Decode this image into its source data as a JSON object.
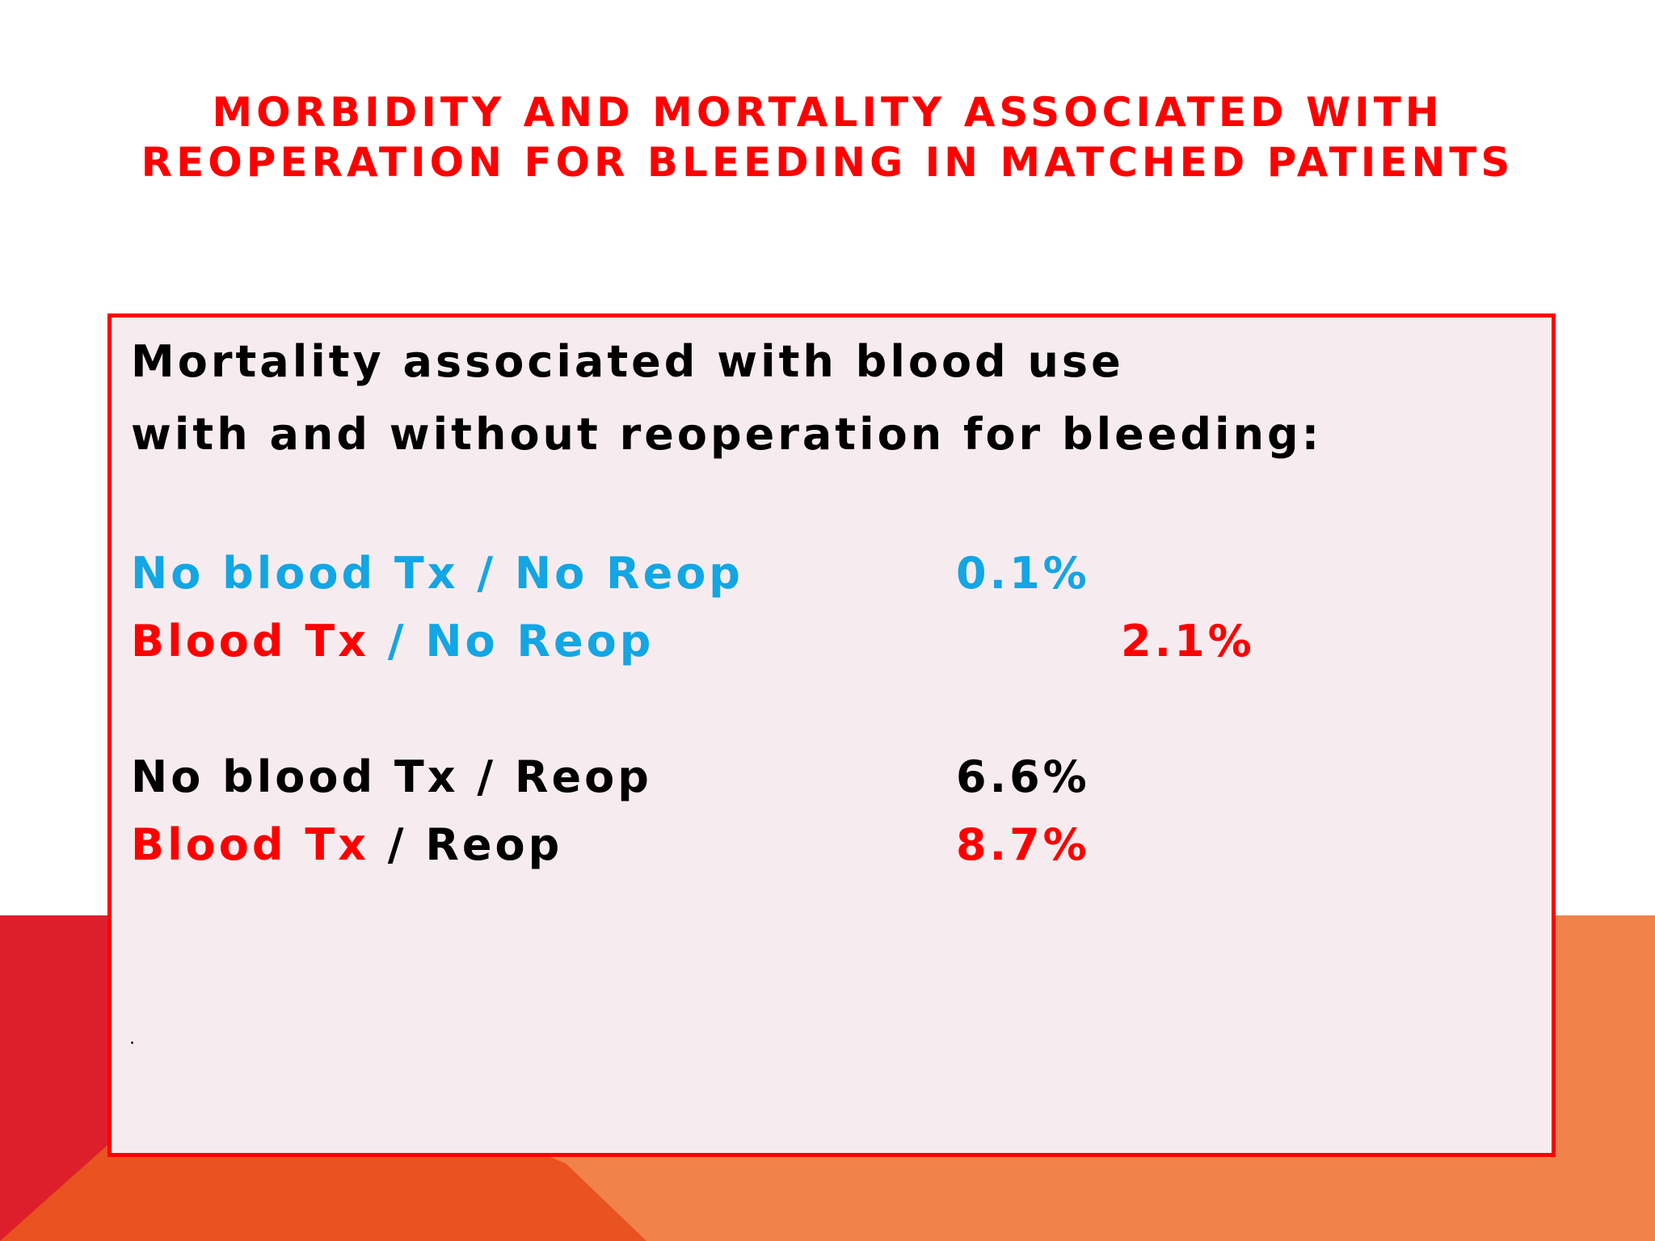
{
  "slide": {
    "title_line1": "MORBIDITY AND MORTALITY ASSOCIATED WITH",
    "title_line2": "REOPERATION FOR BLEEDING IN MATCHED PATIENTS",
    "heading_line1": "Mortality associated with blood use",
    "heading_line2": "with and without reoperation for bleeding:",
    "rows": [
      {
        "blood": "No blood Tx",
        "sep": " / ",
        "reop": "No Reop",
        "value": "0.1%"
      },
      {
        "blood": "Blood Tx",
        "sep": " / ",
        "reop": "No Reop",
        "value": "2.1%"
      },
      {
        "blood": "No blood Tx",
        "sep": " / ",
        "reop": "Reop",
        "value": "6.6%"
      },
      {
        "blood": "Blood Tx",
        "sep": " / ",
        "reop": "Reop",
        "value": "8.7%"
      }
    ],
    "footnote": "."
  },
  "colors": {
    "title": "#fe0000",
    "blue": "#12a6e4",
    "red": "#fe0000",
    "box_fill": "#f6ecef",
    "orange": "#f0824a",
    "dark_orange": "#e8531f",
    "crimson": "#dd1f2c"
  }
}
